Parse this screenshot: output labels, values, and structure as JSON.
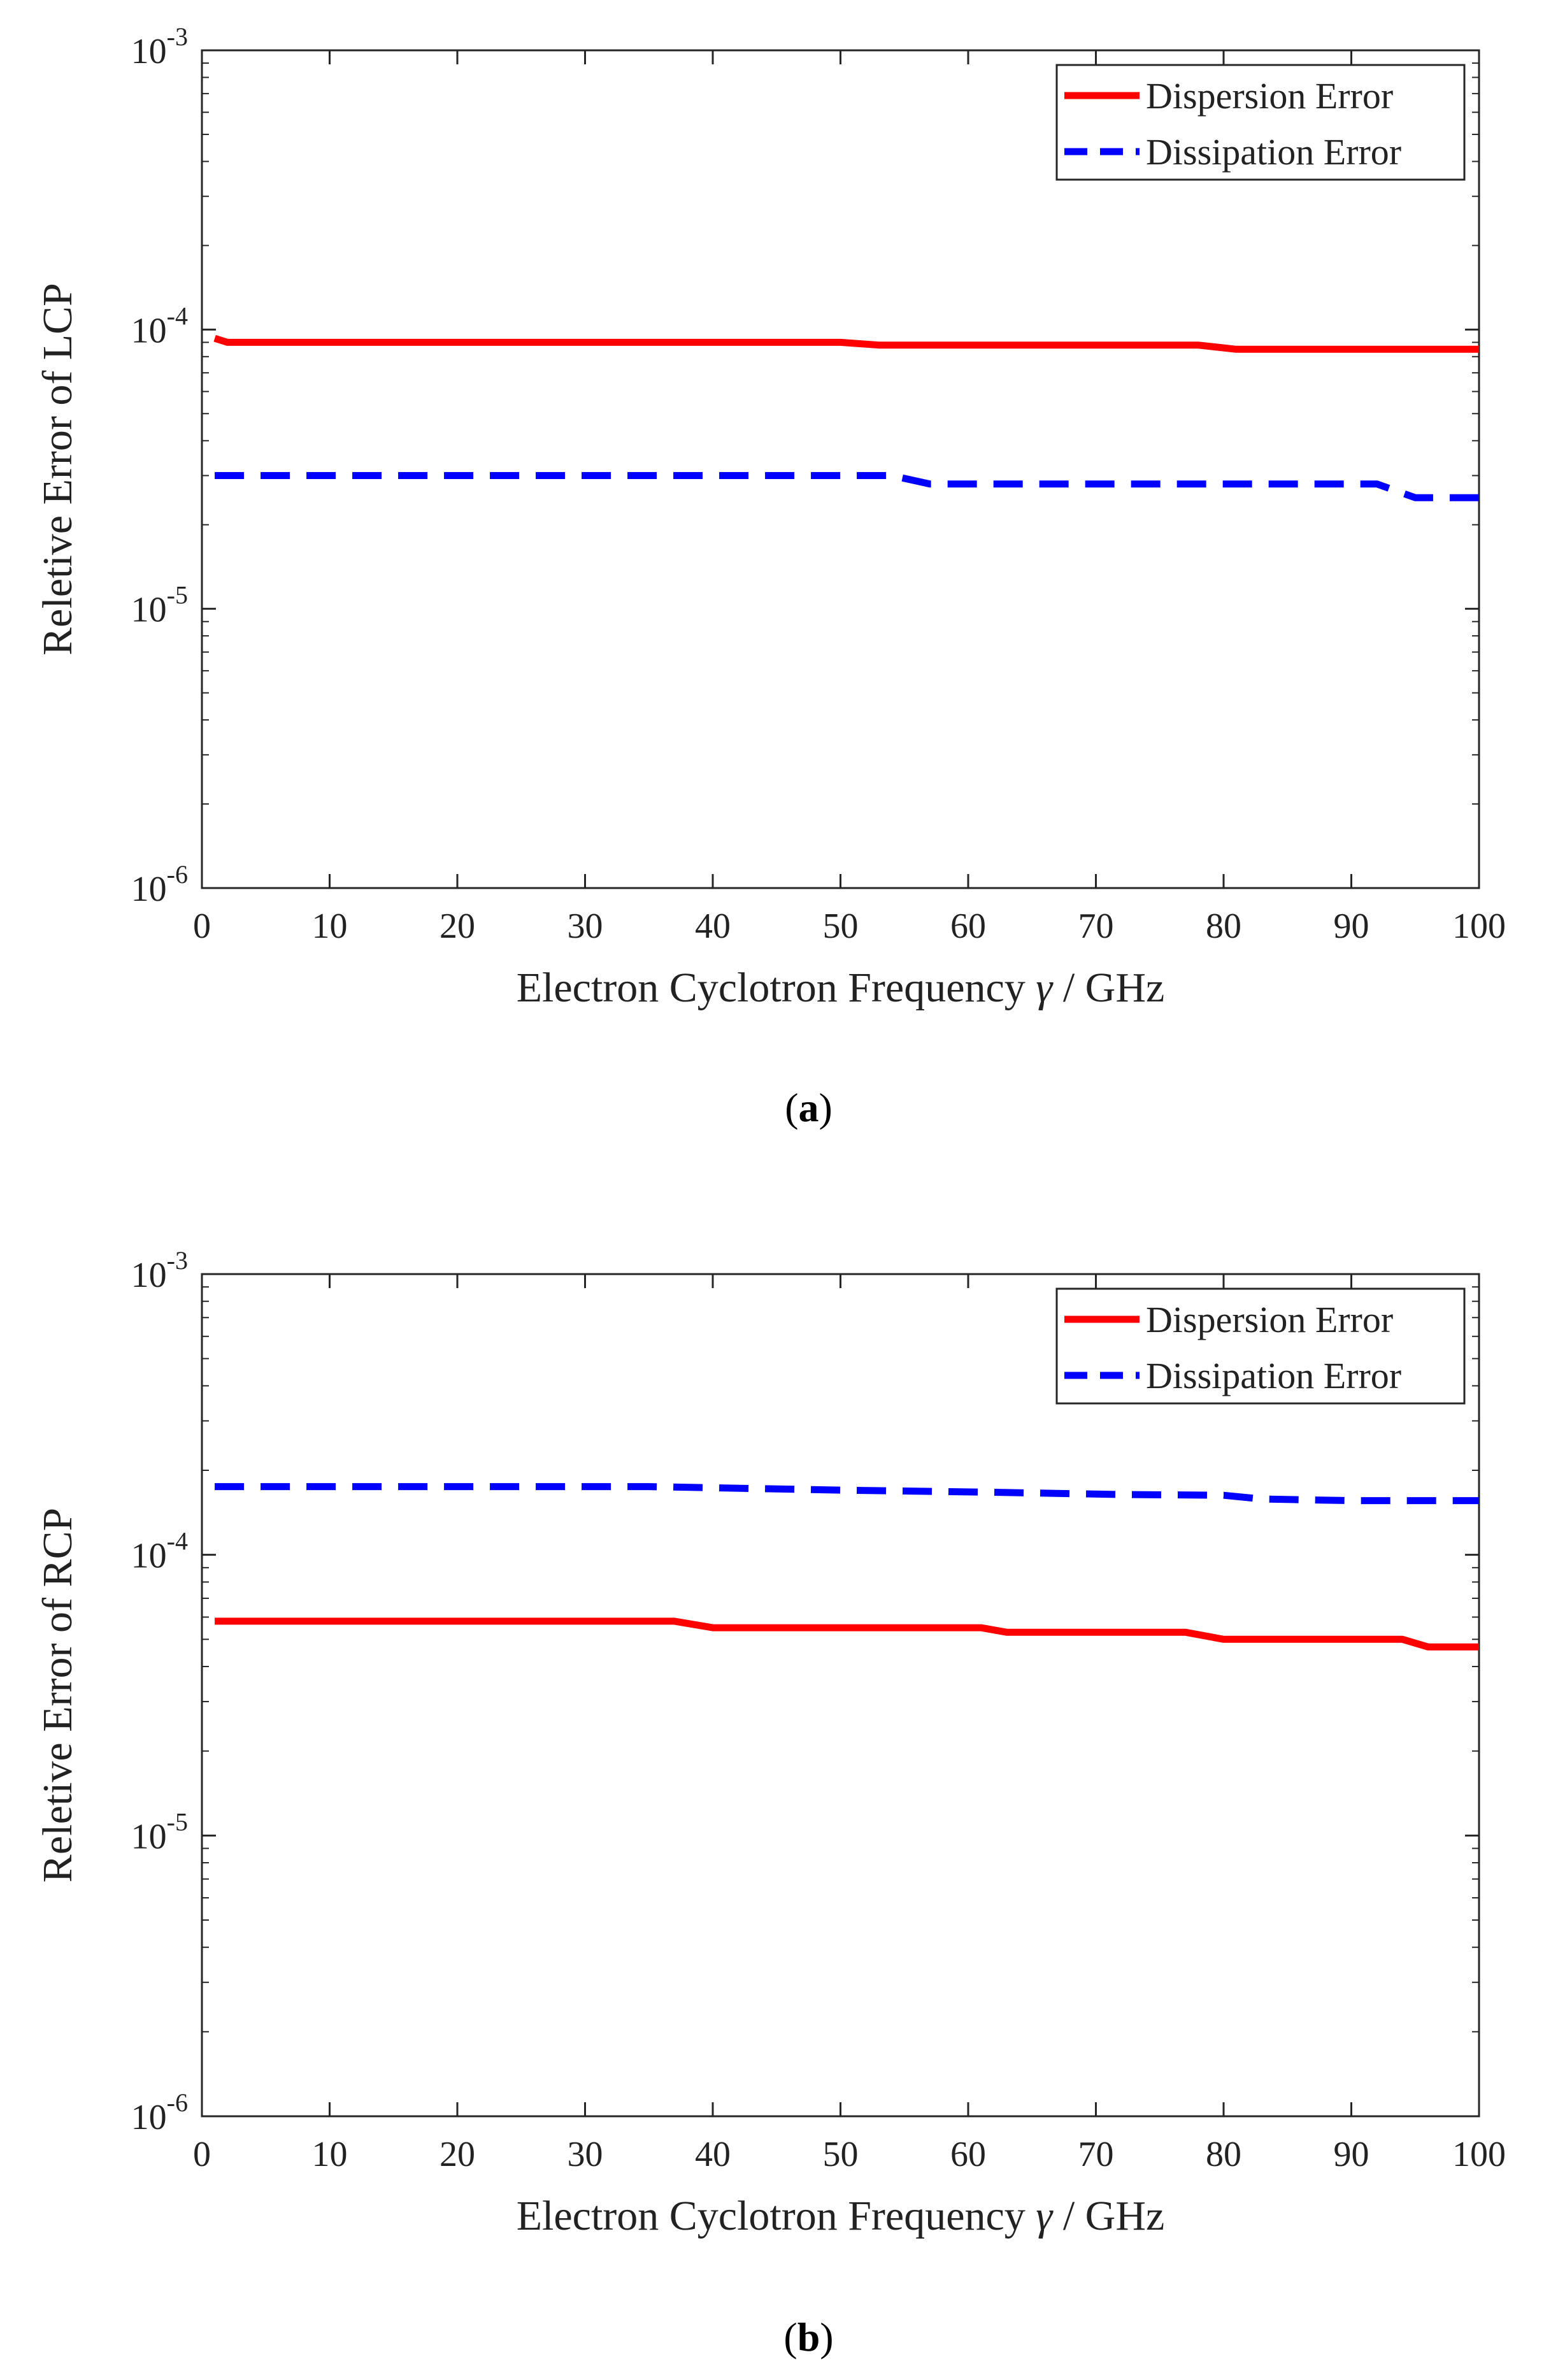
{
  "chart_data": [
    {
      "type": "line",
      "panel": "a",
      "caption": {
        "open": "(",
        "letter": "a",
        "close": ")"
      },
      "xlabel": "Electron Cyclotron Frequency",
      "xlabel_symbol": "γ",
      "xlabel_unit": " / GHz",
      "ylabel": "Reletive Error of LCP",
      "yscale": "log",
      "xlim": [
        0,
        100
      ],
      "ylim_exp": [
        -6,
        -3
      ],
      "xticks": [
        "0",
        "10",
        "20",
        "30",
        "40",
        "50",
        "60",
        "70",
        "80",
        "90",
        "100"
      ],
      "yticks": [
        {
          "exp": -6,
          "base": "10",
          "sup": "-6"
        },
        {
          "exp": -5,
          "base": "10",
          "sup": "-5"
        },
        {
          "exp": -4,
          "base": "10",
          "sup": "-4"
        },
        {
          "exp": -3,
          "base": "10",
          "sup": "-3"
        }
      ],
      "legend_position": "top-right",
      "series": [
        {
          "name": "Dispersion Error",
          "color": "#ff0000",
          "style": "solid",
          "x": [
            1,
            2,
            50,
            53,
            78,
            81,
            100
          ],
          "y": [
            9.3e-05,
            9e-05,
            9e-05,
            8.8e-05,
            8.8e-05,
            8.5e-05,
            8.5e-05
          ]
        },
        {
          "name": "Dissipation Error",
          "color": "#0000ff",
          "style": "dashed",
          "x": [
            1,
            54,
            57,
            92,
            95,
            100
          ],
          "y": [
            3e-05,
            3e-05,
            2.8e-05,
            2.8e-05,
            2.5e-05,
            2.5e-05
          ]
        }
      ]
    },
    {
      "type": "line",
      "panel": "b",
      "caption": {
        "open": "(",
        "letter": "b",
        "close": ")"
      },
      "xlabel": "Electron Cyclotron Frequency",
      "xlabel_symbol": "γ",
      "xlabel_unit": " / GHz",
      "ylabel": "Reletive Error of RCP",
      "yscale": "log",
      "xlim": [
        0,
        100
      ],
      "ylim_exp": [
        -6,
        -3
      ],
      "xticks": [
        "0",
        "10",
        "20",
        "30",
        "40",
        "50",
        "60",
        "70",
        "80",
        "90",
        "100"
      ],
      "yticks": [
        {
          "exp": -6,
          "base": "10",
          "sup": "-6"
        },
        {
          "exp": -5,
          "base": "10",
          "sup": "-5"
        },
        {
          "exp": -4,
          "base": "10",
          "sup": "-4"
        },
        {
          "exp": -3,
          "base": "10",
          "sup": "-3"
        }
      ],
      "legend_position": "top-right",
      "series": [
        {
          "name": "Dispersion Error",
          "color": "#ff0000",
          "style": "solid",
          "x": [
            1,
            37,
            40,
            61,
            63,
            77,
            80,
            94,
            96,
            100
          ],
          "y": [
            5.8e-05,
            5.8e-05,
            5.5e-05,
            5.5e-05,
            5.3e-05,
            5.3e-05,
            5e-05,
            5e-05,
            4.7e-05,
            4.7e-05
          ]
        },
        {
          "name": "Dissipation Error",
          "color": "#0000ff",
          "style": "dashed",
          "x": [
            1,
            35,
            50,
            62,
            72,
            80,
            83,
            90,
            100
          ],
          "y": [
            0.000175,
            0.000175,
            0.00017,
            0.000167,
            0.000164,
            0.000163,
            0.000158,
            0.000156,
            0.000156
          ]
        }
      ]
    }
  ]
}
